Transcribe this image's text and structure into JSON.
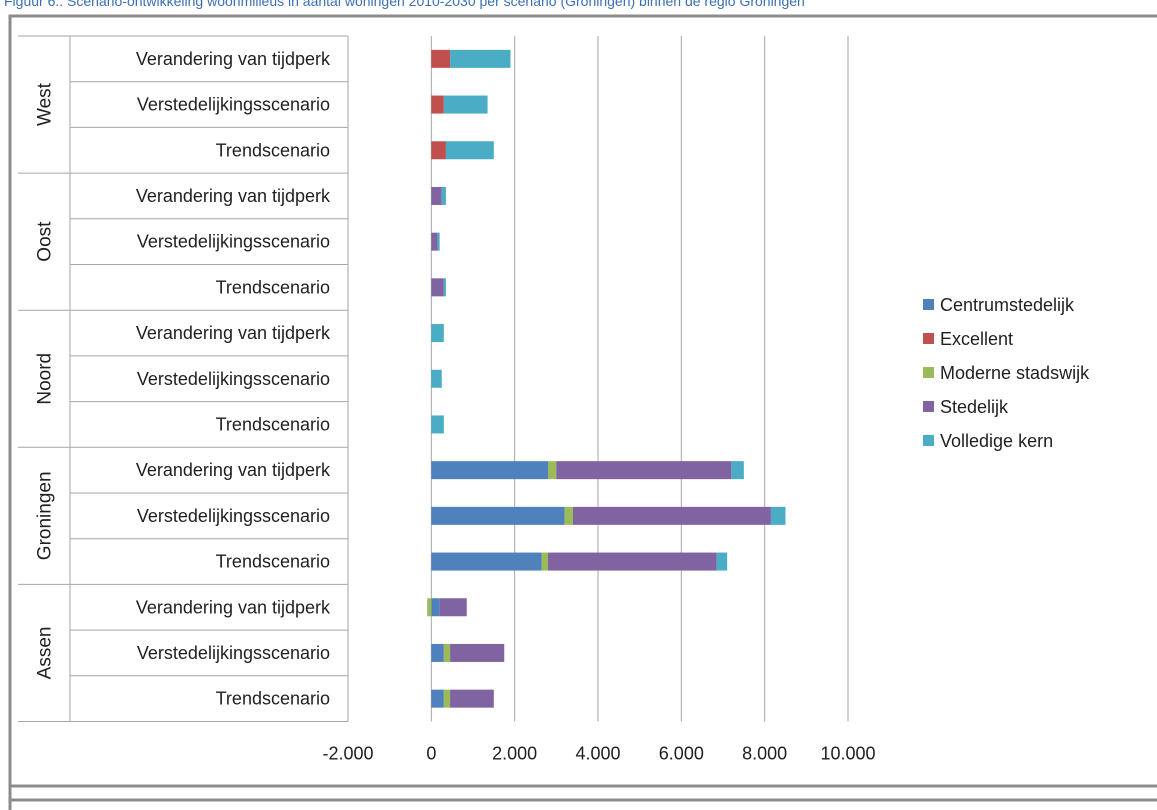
{
  "caption": "Figuur 6.: Scenario-ontwikkeling woonmilieus in aantal woningen 2010-2030 per scenario (Groningen) binnen de regio Groningen",
  "chart_data": {
    "type": "bar",
    "orientation": "horizontal",
    "stacked": true,
    "groups": [
      {
        "name": "West",
        "categories": [
          "Verandering van tijdperk",
          "Verstedelijkingsscenario",
          "Trendscenario"
        ]
      },
      {
        "name": "Oost",
        "categories": [
          "Verandering van tijdperk",
          "Verstedelijkingsscenario",
          "Trendscenario"
        ]
      },
      {
        "name": "Noord",
        "categories": [
          "Verandering van tijdperk",
          "Verstedelijkingsscenario",
          "Trendscenario"
        ]
      },
      {
        "name": "Groningen",
        "categories": [
          "Verandering van tijdperk",
          "Verstedelijkingsscenario",
          "Trendscenario"
        ]
      },
      {
        "name": "Assen",
        "categories": [
          "Verandering van tijdperk",
          "Verstedelijkingsscenario",
          "Trendscenario"
        ]
      }
    ],
    "series": [
      {
        "name": "Centrumstedelijk",
        "color": "#4f81bd",
        "values": [
          0,
          0,
          0,
          0,
          0,
          0,
          0,
          0,
          0,
          2800,
          3200,
          2650,
          200,
          300,
          300
        ]
      },
      {
        "name": "Excellent",
        "color": "#c0504d",
        "values": [
          450,
          300,
          350,
          0,
          0,
          0,
          0,
          0,
          0,
          0,
          0,
          0,
          0,
          0,
          0
        ]
      },
      {
        "name": "Moderne stadswijk",
        "color": "#9bbb59",
        "values": [
          0,
          0,
          0,
          0,
          0,
          0,
          0,
          0,
          0,
          200,
          200,
          150,
          -100,
          150,
          150
        ]
      },
      {
        "name": "Stedelijk",
        "color": "#8064a2",
        "values": [
          0,
          0,
          0,
          250,
          150,
          300,
          0,
          0,
          0,
          4200,
          4750,
          4050,
          650,
          1300,
          1050
        ]
      },
      {
        "name": "Volledige kern",
        "color": "#4bacc6",
        "values": [
          1450,
          1050,
          1150,
          100,
          50,
          50,
          300,
          250,
          300,
          300,
          350,
          250,
          0,
          0,
          0
        ]
      }
    ],
    "xlim": [
      -2000,
      10000
    ],
    "xticks": [
      -2000,
      0,
      2000,
      4000,
      6000,
      8000,
      10000
    ],
    "xtick_labels": [
      "-2.000",
      "0",
      "2.000",
      "4.000",
      "6.000",
      "8.000",
      "10.000"
    ],
    "grid": true,
    "legend": "right"
  }
}
